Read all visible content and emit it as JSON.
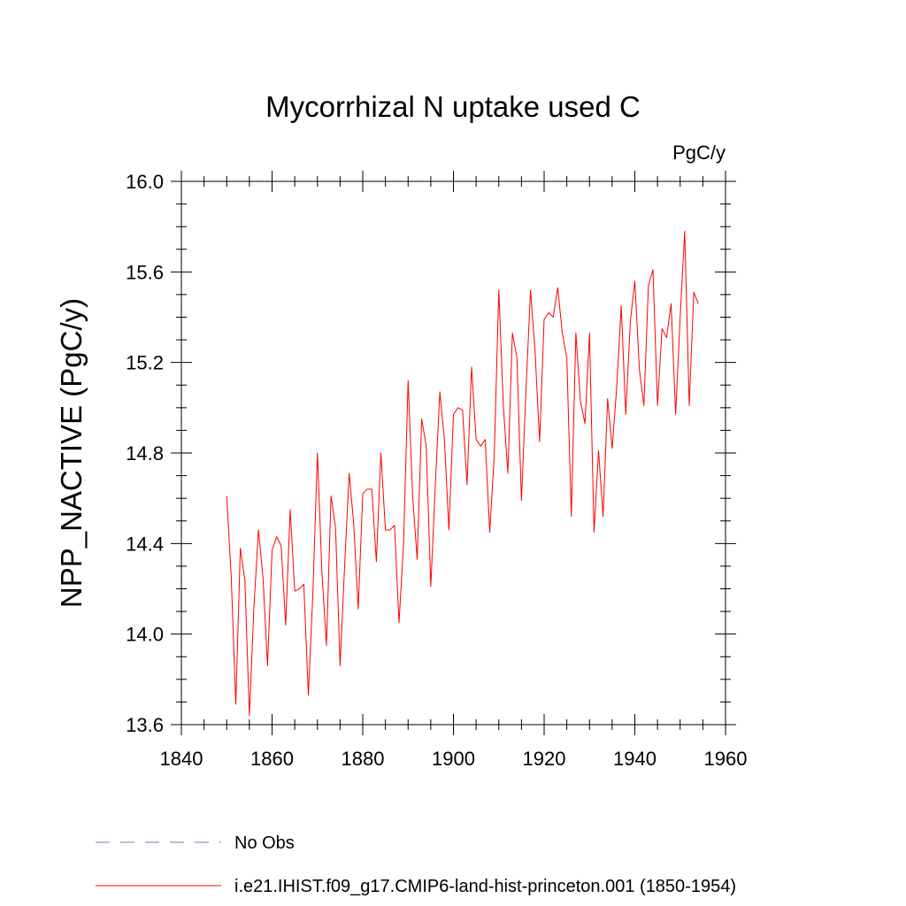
{
  "chart_data": {
    "type": "line",
    "title": "Mycorrhizal N uptake used C",
    "units": "PgC/y",
    "ylabel": "NPP_NACTIVE  (PgC/y)",
    "xlabel": "",
    "xlim": [
      1840,
      1960
    ],
    "ylim": [
      13.6,
      16.0
    ],
    "x_ticks": [
      1840,
      1860,
      1880,
      1900,
      1920,
      1940,
      1960
    ],
    "y_ticks": [
      13.6,
      14.0,
      14.4,
      14.8,
      15.2,
      15.6,
      16.0
    ],
    "x_tick_labels": [
      "1840",
      "1860",
      "1880",
      "1900",
      "1920",
      "1940",
      "1960"
    ],
    "y_tick_labels": [
      "13.6",
      "14.0",
      "14.4",
      "14.8",
      "15.2",
      "15.6",
      "16.0"
    ],
    "grid": false,
    "legend_placement": "bottom",
    "series": [
      {
        "name": "i.e21.IHIST.f09_g17.CMIP6-land-hist-princeton.001 (1850-1954)",
        "color": "#ff0000",
        "style": "solid",
        "x_start": 1850,
        "values": [
          14.61,
          14.25,
          13.69,
          14.38,
          14.24,
          13.64,
          14.12,
          14.46,
          14.25,
          13.86,
          14.37,
          14.43,
          14.39,
          14.04,
          14.55,
          14.19,
          14.2,
          14.22,
          13.73,
          14.18,
          14.8,
          14.27,
          13.95,
          14.61,
          14.47,
          13.86,
          14.3,
          14.71,
          14.49,
          14.11,
          14.62,
          14.64,
          14.64,
          14.32,
          14.8,
          14.46,
          14.46,
          14.48,
          14.05,
          14.4,
          15.12,
          14.61,
          14.33,
          14.95,
          14.83,
          14.21,
          14.66,
          15.07,
          14.86,
          14.46,
          14.97,
          15.0,
          14.99,
          14.66,
          15.18,
          14.86,
          14.83,
          14.86,
          14.45,
          14.79,
          15.52,
          15.01,
          14.71,
          15.33,
          15.22,
          14.59,
          15.08,
          15.52,
          15.25,
          14.85,
          15.39,
          15.42,
          15.4,
          15.53,
          15.33,
          15.22,
          14.52,
          15.33,
          15.03,
          14.93,
          15.33,
          14.45,
          14.81,
          14.52,
          15.04,
          14.82,
          15.09,
          15.45,
          14.97,
          15.38,
          15.56,
          15.17,
          15.01,
          15.54,
          15.61,
          15.01,
          15.35,
          15.31,
          15.46,
          14.97,
          15.4,
          15.78,
          15.01,
          15.51,
          15.46
        ]
      }
    ],
    "legend": [
      {
        "name": "No Obs",
        "color": "#7a7ab8",
        "style": "dashed"
      },
      {
        "name": "i.e21.IHIST.f09_g17.CMIP6-land-hist-princeton.001 (1850-1954)",
        "color": "#ff0000",
        "style": "solid"
      }
    ]
  }
}
